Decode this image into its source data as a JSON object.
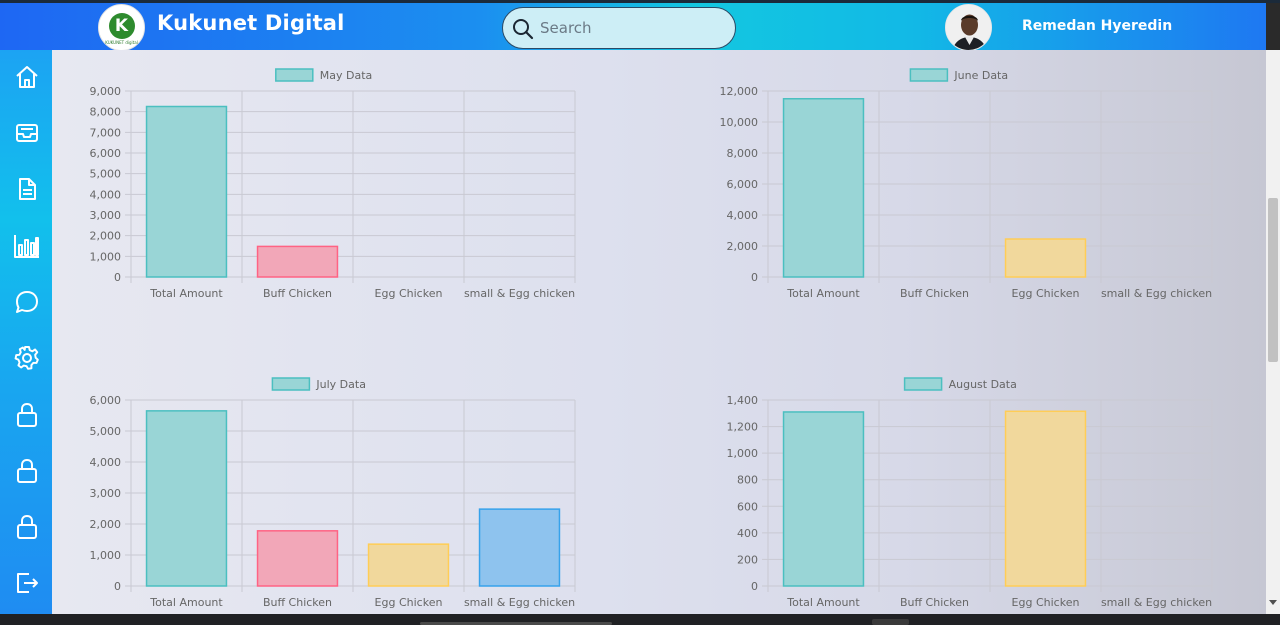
{
  "header": {
    "logo_text": "KUKUNET digital",
    "brand": "Kukunet Digital",
    "search_placeholder": "Search",
    "username": "Remedan Hyeredin"
  },
  "sidebar": {
    "items": [
      {
        "name": "home",
        "icon": "home-icon"
      },
      {
        "name": "inbox",
        "icon": "inbox-icon"
      },
      {
        "name": "document",
        "icon": "document-icon"
      },
      {
        "name": "chart",
        "icon": "bar-chart-icon"
      },
      {
        "name": "messages",
        "icon": "chat-icon"
      },
      {
        "name": "settings",
        "icon": "gear-icon"
      },
      {
        "name": "lock-1",
        "icon": "lock-icon"
      },
      {
        "name": "lock-2",
        "icon": "lock-icon"
      },
      {
        "name": "lock-3",
        "icon": "lock-icon"
      },
      {
        "name": "logout",
        "icon": "logout-icon"
      }
    ]
  },
  "colors": {
    "teal_fill": "#99d5d6",
    "teal_stroke": "#4bbfc0",
    "pink_fill": "#f2a7b8",
    "pink_stroke": "#ff6384",
    "yellow_fill": "#f1d89c",
    "yellow_stroke": "#ffcd56",
    "blue_fill": "#8ec3ee",
    "blue_stroke": "#36a2eb"
  },
  "chart_data": [
    {
      "type": "bar",
      "legend": "May Data",
      "categories": [
        "Total Amount",
        "Buff Chicken",
        "Egg Chicken",
        "small & Egg chicken"
      ],
      "values": [
        8250,
        1480,
        0,
        0
      ],
      "ylim": [
        0,
        9000
      ],
      "yticks": [
        "0",
        "1,000",
        "2,000",
        "3,000",
        "4,000",
        "5,000",
        "6,000",
        "7,000",
        "8,000",
        "9,000"
      ],
      "grid": true,
      "legend_position": "top"
    },
    {
      "type": "bar",
      "legend": "June Data",
      "categories": [
        "Total Amount",
        "Buff Chicken",
        "Egg Chicken",
        "small & Egg chicken"
      ],
      "values": [
        11500,
        0,
        2450,
        0
      ],
      "ylim": [
        0,
        12000
      ],
      "yticks": [
        "0",
        "2,000",
        "4,000",
        "6,000",
        "8,000",
        "10,000",
        "12,000"
      ],
      "grid": true,
      "legend_position": "top"
    },
    {
      "type": "bar",
      "legend": "July Data",
      "categories": [
        "Total Amount",
        "Buff Chicken",
        "Egg Chicken",
        "small & Egg chicken"
      ],
      "values": [
        5650,
        1780,
        1350,
        2480
      ],
      "ylim": [
        0,
        6000
      ],
      "yticks": [
        "0",
        "1,000",
        "2,000",
        "3,000",
        "4,000",
        "5,000",
        "6,000"
      ],
      "grid": true,
      "legend_position": "top"
    },
    {
      "type": "bar",
      "legend": "August Data",
      "categories": [
        "Total Amount",
        "Buff Chicken",
        "Egg Chicken",
        "small & Egg chicken"
      ],
      "values": [
        1310,
        0,
        1315,
        0
      ],
      "ylim": [
        0,
        1400
      ],
      "yticks": [
        "0",
        "200",
        "400",
        "600",
        "800",
        "1,000",
        "1,200",
        "1,400"
      ],
      "grid": true,
      "legend_position": "top"
    }
  ]
}
